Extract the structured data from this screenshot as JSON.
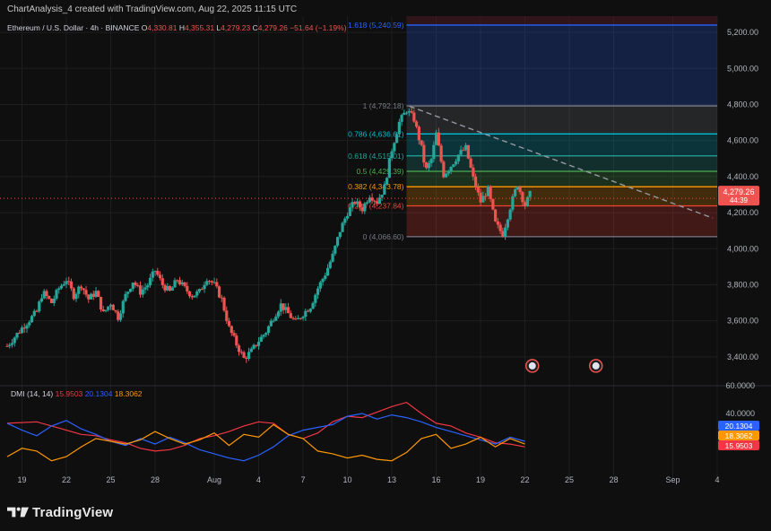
{
  "header": {
    "attribution": "ChartAnalysis_4 created with TradingView.com, Aug 22, 2025 11:15 UTC"
  },
  "legend": {
    "symbol": "Ethereum / U.S. Dollar · 4h · BINANCE",
    "ohlc": [
      {
        "label": "O",
        "value": "4,330.81"
      },
      {
        "label": "H",
        "value": "4,355.31"
      },
      {
        "label": "L",
        "value": "4,279.23"
      },
      {
        "label": "C",
        "value": "4,279.26"
      }
    ],
    "change": "−51.64 (−1.19%)"
  },
  "colors": {
    "up": "#26a69a",
    "down": "#ef5350",
    "background": "#0f0f0f",
    "grid": "#1e1e1e"
  },
  "brand": {
    "name": "TradingView",
    "icon": "tradingview-logo-icon"
  },
  "chart_data": [
    {
      "type": "candlestick",
      "title": "Ethereum / U.S. Dollar · 4h · BINANCE",
      "ylim": [
        3250,
        5290
      ],
      "y_ticks": [
        "5,200.00",
        "5,000.00",
        "4,800.00",
        "4,600.00",
        "4,400.00",
        "4,200.00",
        "4,000.00",
        "3,800.00",
        "3,600.00",
        "3,400.00"
      ],
      "y_tick_values": [
        5200,
        5000,
        4800,
        4600,
        4400,
        4200,
        4000,
        3800,
        3600,
        3400
      ],
      "x_ticks": [
        "19",
        "22",
        "25",
        "28",
        "Aug",
        "4",
        "7",
        "10",
        "13",
        "16",
        "19",
        "22",
        "25",
        "28",
        "Sep",
        "4"
      ],
      "x_tick_values": [
        1,
        4,
        7,
        10,
        14,
        17,
        20,
        23,
        26,
        29,
        32,
        35,
        38,
        41,
        45,
        48
      ],
      "x_domain": [
        0,
        48
      ],
      "close_path": [
        [
          0,
          3460
        ],
        [
          1,
          3560
        ],
        [
          2,
          3650
        ],
        [
          2.4,
          3760
        ],
        [
          3,
          3700
        ],
        [
          3.5,
          3780
        ],
        [
          4,
          3830
        ],
        [
          4.5,
          3740
        ],
        [
          5,
          3800
        ],
        [
          5.5,
          3720
        ],
        [
          6,
          3760
        ],
        [
          6.5,
          3640
        ],
        [
          7,
          3700
        ],
        [
          7.5,
          3620
        ],
        [
          8,
          3740
        ],
        [
          8.5,
          3820
        ],
        [
          9,
          3760
        ],
        [
          9.5,
          3800
        ],
        [
          10,
          3880
        ],
        [
          10.5,
          3800
        ],
        [
          11,
          3760
        ],
        [
          11.5,
          3830
        ],
        [
          12,
          3780
        ],
        [
          12.5,
          3740
        ],
        [
          13,
          3760
        ],
        [
          13.5,
          3840
        ],
        [
          14,
          3800
        ],
        [
          14.5,
          3720
        ],
        [
          15,
          3560
        ],
        [
          15.5,
          3470
        ],
        [
          16,
          3390
        ],
        [
          16.5,
          3430
        ],
        [
          17,
          3490
        ],
        [
          17.5,
          3540
        ],
        [
          18,
          3620
        ],
        [
          18.5,
          3690
        ],
        [
          19,
          3640
        ],
        [
          19.5,
          3590
        ],
        [
          20,
          3640
        ],
        [
          20.5,
          3680
        ],
        [
          21,
          3780
        ],
        [
          21.5,
          3860
        ],
        [
          22,
          3960
        ],
        [
          22.5,
          4100
        ],
        [
          23,
          4200
        ],
        [
          23.5,
          4260
        ],
        [
          24,
          4220
        ],
        [
          24.5,
          4300
        ],
        [
          25,
          4260
        ],
        [
          25.5,
          4340
        ],
        [
          26,
          4550
        ],
        [
          26.5,
          4700
        ],
        [
          27,
          4770
        ],
        [
          27.5,
          4720
        ],
        [
          28,
          4560
        ],
        [
          28.3,
          4430
        ],
        [
          28.7,
          4500
        ],
        [
          29,
          4640
        ],
        [
          29.5,
          4410
        ],
        [
          30,
          4460
        ],
        [
          30.5,
          4520
        ],
        [
          31,
          4560
        ],
        [
          31.5,
          4390
        ],
        [
          32,
          4260
        ],
        [
          32.5,
          4330
        ],
        [
          33,
          4140
        ],
        [
          33.5,
          4080
        ],
        [
          34,
          4230
        ],
        [
          34.5,
          4360
        ],
        [
          35,
          4240
        ],
        [
          35.5,
          4330
        ]
      ]
    },
    {
      "type": "fibonacci",
      "levels": [
        {
          "ratio": "1.618",
          "label": "1.618 (5,240.59)",
          "value": 5240.59,
          "color": "#2962ff"
        },
        {
          "ratio": "1",
          "label": "1 (4,792.18)",
          "value": 4792.18,
          "color": "#787b86"
        },
        {
          "ratio": "0.786",
          "label": "0.786 (4,636.61)",
          "value": 4636.61,
          "color": "#00bcd4"
        },
        {
          "ratio": "0.618",
          "label": "0.618 (4,515.01)",
          "value": 4515.01,
          "color": "#26a69a"
        },
        {
          "ratio": "0.5",
          "label": "0.5 (4,429.39)",
          "value": 4429.39,
          "color": "#4caf50"
        },
        {
          "ratio": "0.382",
          "label": "0.382 (4,343.78)",
          "value": 4343.78,
          "color": "#ff9800"
        },
        {
          "ratio": "0.236",
          "label": "0.236 (4,237.84)",
          "value": 4237.84,
          "color": "#f44336"
        },
        {
          "ratio": "0",
          "label": "0 (4,066.60)",
          "value": 4066.6,
          "color": "#787b86"
        }
      ],
      "x_range": [
        27,
        48
      ],
      "trendline": {
        "from": [
          27.2,
          4790
        ],
        "to": [
          47.7,
          4170
        ]
      }
    },
    {
      "type": "line",
      "title": "DMI (14, 14)",
      "legend_values": [
        "15.9503",
        "20.1304",
        "18.3062"
      ],
      "ylim": [
        0,
        60
      ],
      "y_ticks": [
        "60.0000",
        "40.0000"
      ],
      "y_tick_values": [
        60,
        40
      ],
      "series": [
        {
          "color": "#f23645",
          "badge": "15.9503",
          "points": [
            [
              0,
              33
            ],
            [
              2,
              34
            ],
            [
              4,
              28
            ],
            [
              5,
              25
            ],
            [
              6,
              24
            ],
            [
              7,
              21
            ],
            [
              8,
              19
            ],
            [
              9,
              15
            ],
            [
              10,
              13
            ],
            [
              11,
              14
            ],
            [
              12,
              17
            ],
            [
              13,
              22
            ],
            [
              14,
              24
            ],
            [
              15,
              27
            ],
            [
              16,
              31
            ],
            [
              17,
              34
            ],
            [
              18,
              33
            ],
            [
              19,
              25
            ],
            [
              20,
              22
            ],
            [
              21,
              26
            ],
            [
              22,
              34
            ],
            [
              23,
              38
            ],
            [
              24,
              37
            ],
            [
              25,
              41
            ],
            [
              26,
              45
            ],
            [
              27,
              48
            ],
            [
              28,
              40
            ],
            [
              29,
              33
            ],
            [
              30,
              31
            ],
            [
              31,
              26
            ],
            [
              32,
              23
            ],
            [
              33,
              19
            ],
            [
              34,
              18
            ],
            [
              35,
              16
            ]
          ]
        },
        {
          "color": "#2962ff",
          "badge": "20.1304",
          "points": [
            [
              0,
              33
            ],
            [
              1,
              28
            ],
            [
              2,
              24
            ],
            [
              3,
              31
            ],
            [
              4,
              35
            ],
            [
              5,
              29
            ],
            [
              6,
              25
            ],
            [
              7,
              20
            ],
            [
              8,
              17
            ],
            [
              9,
              22
            ],
            [
              10,
              18
            ],
            [
              11,
              23
            ],
            [
              12,
              19
            ],
            [
              13,
              14
            ],
            [
              14,
              11
            ],
            [
              15,
              8
            ],
            [
              16,
              6
            ],
            [
              17,
              10
            ],
            [
              18,
              16
            ],
            [
              19,
              24
            ],
            [
              20,
              28
            ],
            [
              21,
              30
            ],
            [
              22,
              32
            ],
            [
              23,
              38
            ],
            [
              24,
              40
            ],
            [
              25,
              36
            ],
            [
              26,
              39
            ],
            [
              27,
              37
            ],
            [
              28,
              34
            ],
            [
              29,
              30
            ],
            [
              30,
              27
            ],
            [
              31,
              24
            ],
            [
              32,
              21
            ],
            [
              33,
              18
            ],
            [
              34,
              23
            ],
            [
              35,
              20
            ]
          ]
        },
        {
          "color": "#ff9800",
          "badge": "18.3062",
          "points": [
            [
              0,
              9
            ],
            [
              1,
              15
            ],
            [
              2,
              13
            ],
            [
              3,
              6
            ],
            [
              4,
              9
            ],
            [
              5,
              16
            ],
            [
              6,
              22
            ],
            [
              7,
              20
            ],
            [
              8,
              18
            ],
            [
              9,
              21
            ],
            [
              10,
              27
            ],
            [
              11,
              22
            ],
            [
              12,
              18
            ],
            [
              13,
              21
            ],
            [
              14,
              26
            ],
            [
              15,
              17
            ],
            [
              16,
              25
            ],
            [
              17,
              23
            ],
            [
              18,
              32
            ],
            [
              19,
              25
            ],
            [
              20,
              22
            ],
            [
              21,
              13
            ],
            [
              22,
              11
            ],
            [
              23,
              8
            ],
            [
              24,
              10
            ],
            [
              25,
              7
            ],
            [
              26,
              6
            ],
            [
              27,
              12
            ],
            [
              28,
              22
            ],
            [
              29,
              25
            ],
            [
              30,
              15
            ],
            [
              31,
              18
            ],
            [
              32,
              23
            ],
            [
              33,
              16
            ],
            [
              34,
              22
            ],
            [
              35,
              18
            ]
          ]
        }
      ]
    }
  ]
}
